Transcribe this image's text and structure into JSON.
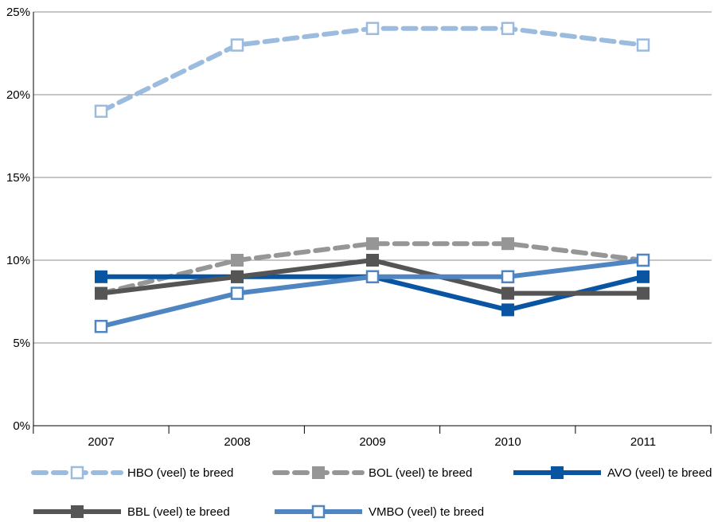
{
  "chart_data": {
    "type": "line",
    "title": "",
    "xlabel": "",
    "ylabel": "",
    "categories": [
      "2007",
      "2008",
      "2009",
      "2010",
      "2011"
    ],
    "ylim": [
      0,
      25
    ],
    "yticks": [
      0,
      5,
      10,
      15,
      20,
      25
    ],
    "ytick_labels": [
      "0%",
      "5%",
      "10%",
      "15%",
      "20%",
      "25%"
    ],
    "grid": "horizontal",
    "legend_position": "bottom",
    "series": [
      {
        "name": "HBO (veel) te breed",
        "values": [
          19,
          23,
          24,
          24,
          23
        ],
        "color": "#9bbbdf",
        "dashed": true,
        "marker": "hollow-square"
      },
      {
        "name": "BOL (veel) te breed",
        "values": [
          8,
          10,
          11,
          11,
          10
        ],
        "color": "#969696",
        "dashed": true,
        "marker": "filled-square"
      },
      {
        "name": "AVO (veel) te breed",
        "values": [
          9,
          9,
          9,
          7,
          9
        ],
        "color": "#0a55a2",
        "dashed": false,
        "marker": "filled-square"
      },
      {
        "name": "BBL (veel) te breed",
        "values": [
          8,
          9,
          10,
          8,
          8
        ],
        "color": "#555555",
        "dashed": false,
        "marker": "filled-square"
      },
      {
        "name": "VMBO (veel) te breed",
        "values": [
          6,
          8,
          9,
          9,
          10
        ],
        "color": "#4f86c2",
        "dashed": false,
        "marker": "hollow-square"
      }
    ]
  }
}
